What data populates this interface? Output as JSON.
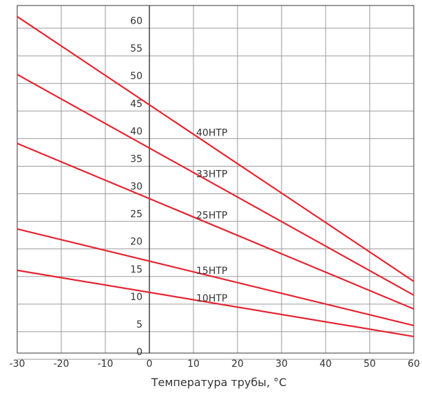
{
  "chart_data": {
    "type": "line",
    "title": "",
    "xlabel": "Температура трубы, °C",
    "ylabel": "",
    "xlim": [
      -30,
      60
    ],
    "ylim": [
      0,
      63
    ],
    "x_ticks": [
      -30,
      -20,
      -10,
      0,
      10,
      20,
      30,
      40,
      50,
      60
    ],
    "y_ticks": [
      0,
      5,
      10,
      15,
      20,
      25,
      30,
      35,
      40,
      45,
      50,
      55,
      60
    ],
    "grid": true,
    "line_color": "#e52330",
    "series": [
      {
        "name": "40HTP",
        "x": [
          -30,
          60
        ],
        "y": [
          61,
          13
        ],
        "label_at": [
          10,
          40
        ]
      },
      {
        "name": "33HTP",
        "x": [
          -30,
          60
        ],
        "y": [
          50.5,
          10.5
        ],
        "label_at": [
          10,
          32.5
        ]
      },
      {
        "name": "25HTP",
        "x": [
          -30,
          60
        ],
        "y": [
          38,
          8
        ],
        "label_at": [
          10,
          25
        ]
      },
      {
        "name": "15HTP",
        "x": [
          -30,
          60
        ],
        "y": [
          22.5,
          5
        ],
        "label_at": [
          10,
          15
        ]
      },
      {
        "name": "10HTP",
        "x": [
          -30,
          60
        ],
        "y": [
          15,
          3
        ],
        "label_at": [
          10,
          10
        ]
      }
    ]
  }
}
